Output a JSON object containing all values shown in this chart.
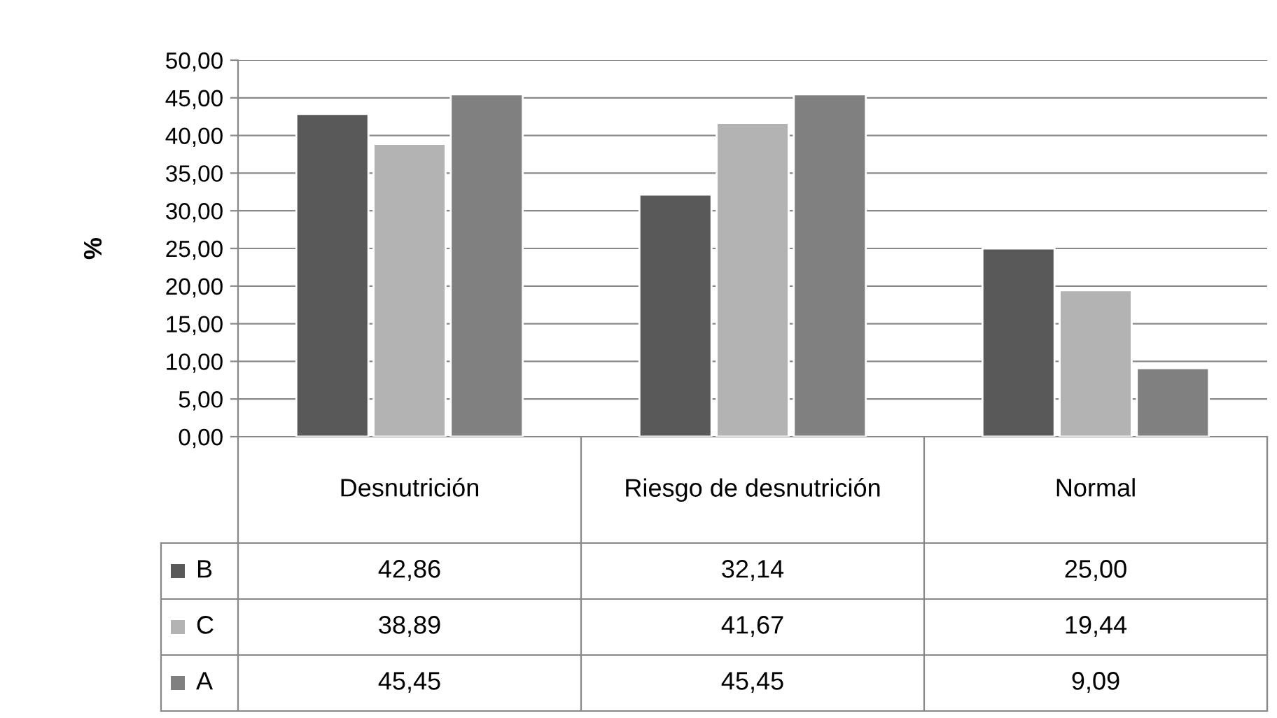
{
  "chart_data": {
    "type": "bar",
    "ylabel": "%",
    "categories": [
      "Desnutrición",
      "Riesgo de desnutrición",
      "Normal"
    ],
    "series": [
      {
        "name": "B",
        "color": "#595959",
        "values": [
          42.86,
          32.14,
          25.0
        ],
        "value_labels": [
          "42,86",
          "32,14",
          "25,00"
        ]
      },
      {
        "name": "C",
        "color": "#b3b3b3",
        "values": [
          38.89,
          41.67,
          19.44
        ],
        "value_labels": [
          "38,89",
          "41,67",
          "19,44"
        ]
      },
      {
        "name": "A",
        "color": "#808080",
        "values": [
          45.45,
          45.45,
          9.09
        ],
        "value_labels": [
          "45,45",
          "45,45",
          "9,09"
        ]
      }
    ],
    "ylim": [
      0,
      50
    ],
    "yticks": [
      {
        "value": 0,
        "label": "0,00"
      },
      {
        "value": 5,
        "label": "5,00"
      },
      {
        "value": 10,
        "label": "10,00"
      },
      {
        "value": 15,
        "label": "15,00"
      },
      {
        "value": 20,
        "label": "20,00"
      },
      {
        "value": 25,
        "label": "25,00"
      },
      {
        "value": 30,
        "label": "30,00"
      },
      {
        "value": 35,
        "label": "35,00"
      },
      {
        "value": 40,
        "label": "40,00"
      },
      {
        "value": 45,
        "label": "45,00"
      },
      {
        "value": 50,
        "label": "50,00"
      }
    ],
    "grid": "y",
    "legend": "bottom"
  }
}
